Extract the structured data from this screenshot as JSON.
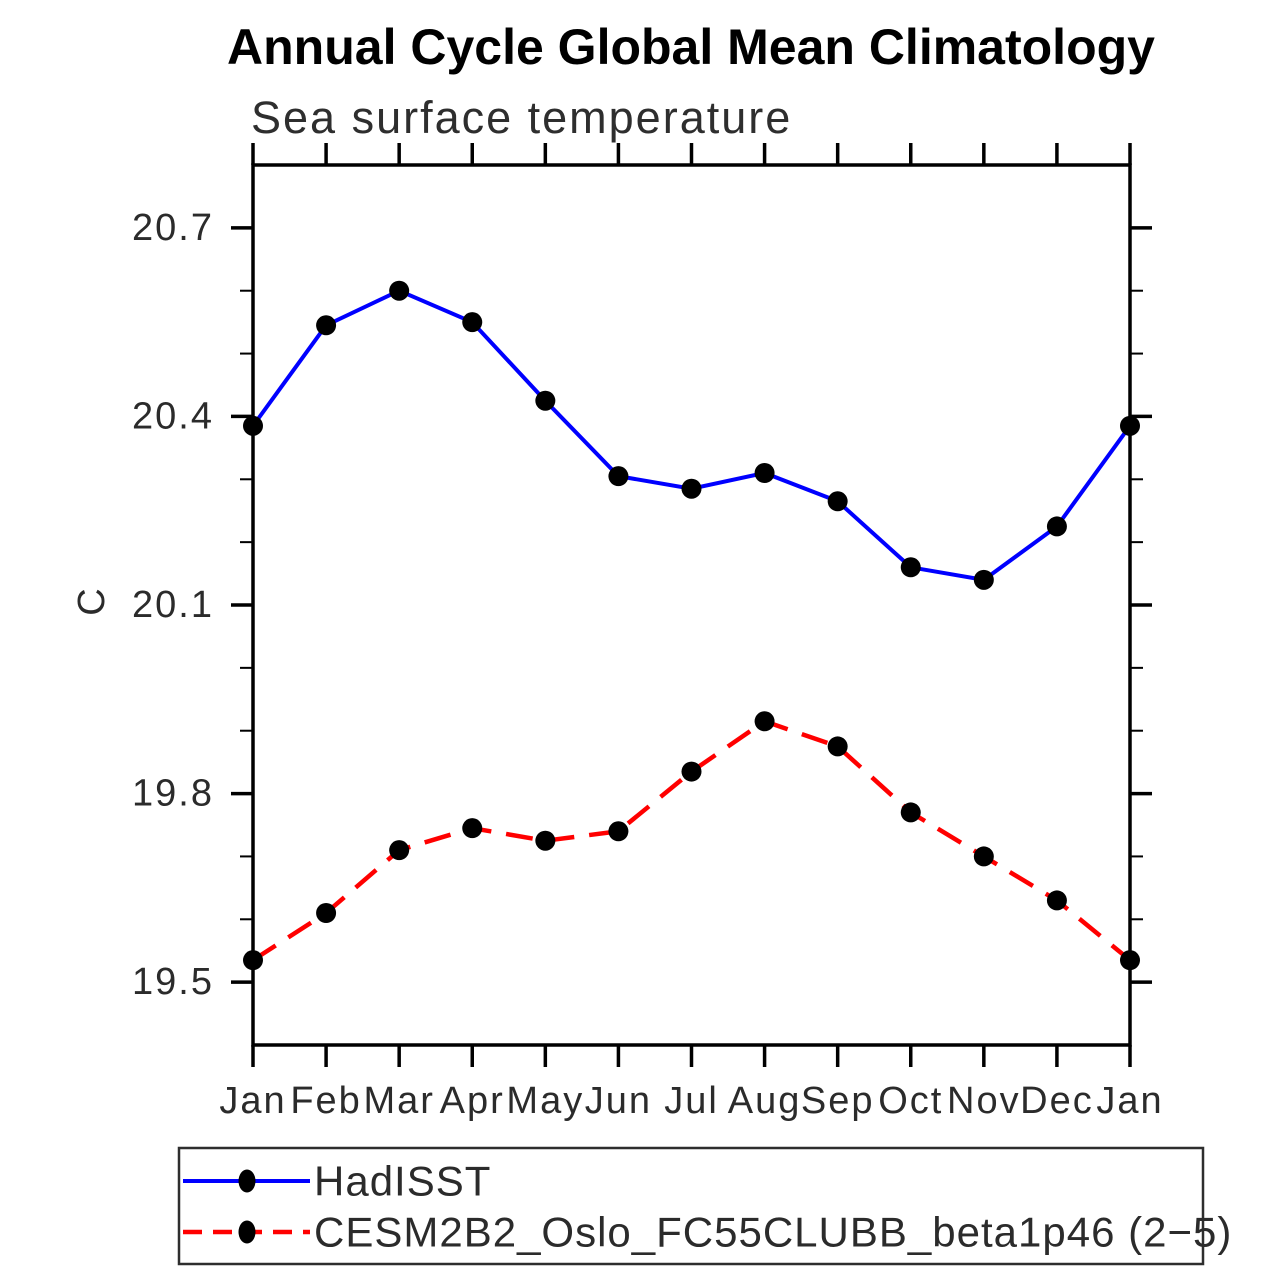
{
  "chart_data": {
    "type": "line",
    "title": "Annual Cycle Global Mean Climatology",
    "subtitle": "Sea surface temperature",
    "ylabel": "C",
    "categories": [
      "Jan",
      "Feb",
      "Mar",
      "Apr",
      "May",
      "Jun",
      "Jul",
      "Aug",
      "Sep",
      "Oct",
      "Nov",
      "Dec",
      "Jan"
    ],
    "ylim": [
      19.4,
      20.8
    ],
    "ytick_major": [
      19.5,
      19.8,
      20.1,
      20.4,
      20.7
    ],
    "ytick_minor_step": 0.1,
    "grid": false,
    "axis_color": "#000000",
    "legend_position": "bottom-left",
    "series": [
      {
        "name": "HadISST",
        "color": "#0000ff",
        "style": "solid",
        "marker": "filled-circle",
        "marker_color": "#000000",
        "values": [
          20.385,
          20.545,
          20.6,
          20.55,
          20.425,
          20.305,
          20.285,
          20.31,
          20.265,
          20.16,
          20.14,
          20.225,
          20.385
        ]
      },
      {
        "name": "CESM2B2_Oslo_FC55CLUBB_beta1p46 (2−5)",
        "color": "#ff0000",
        "style": "dashed",
        "marker": "filled-circle",
        "marker_color": "#000000",
        "values": [
          19.535,
          19.61,
          19.71,
          19.745,
          19.725,
          19.74,
          19.835,
          19.915,
          19.875,
          19.77,
          19.7,
          19.63,
          19.535
        ]
      }
    ]
  }
}
